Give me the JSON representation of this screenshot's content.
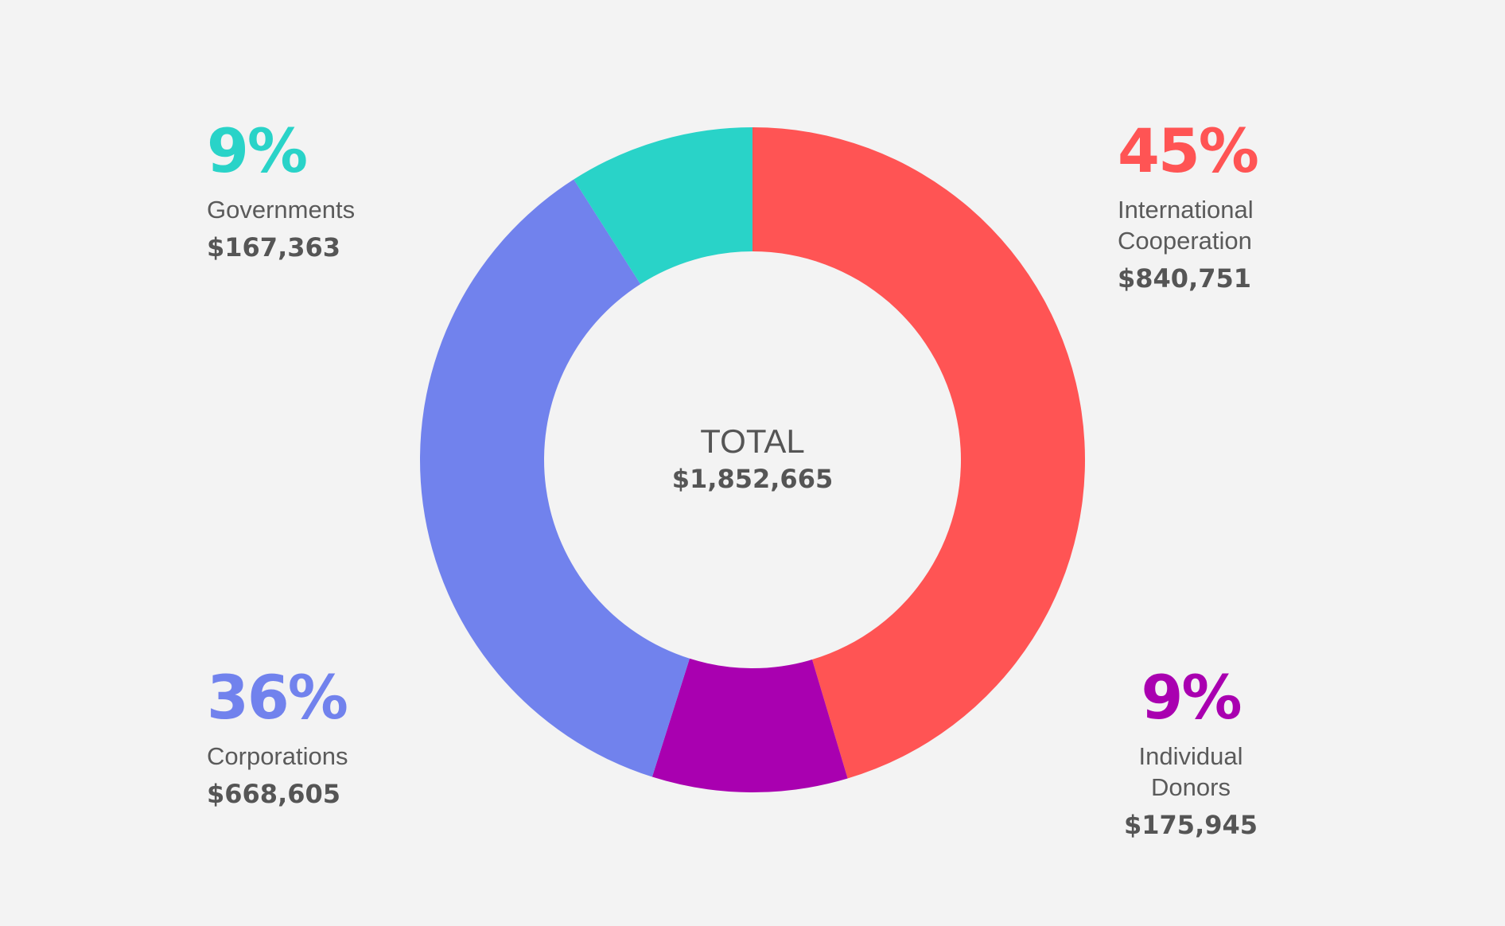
{
  "chart_data": {
    "type": "pie",
    "donut": true,
    "categories": [
      "International Cooperation",
      "Individual Donors",
      "Corporations",
      "Governments"
    ],
    "values": [
      840751,
      175945,
      668605,
      167363
    ],
    "percent_labels": [
      "45%",
      "9%",
      "36%",
      "9%"
    ],
    "amount_labels": [
      "$840,751",
      "$175,945",
      "$668,605",
      "$167,363"
    ],
    "colors": [
      "#ff5454",
      "#a900b0",
      "#7182ed",
      "#29d3c8"
    ],
    "center": {
      "title": "TOTAL",
      "value": "$1,852,665"
    },
    "slice_order": "clockwise from top"
  },
  "callouts": {
    "international": {
      "pct": "45%",
      "name": "International\nCooperation",
      "amount": "$840,751"
    },
    "individual": {
      "pct": "9%",
      "name": "Individual\nDonors",
      "amount": "$175,945"
    },
    "corporations": {
      "pct": "36%",
      "name": "Corporations",
      "amount": "$668,605"
    },
    "governments": {
      "pct": "9%",
      "name": "Governments",
      "amount": "$167,363"
    }
  }
}
